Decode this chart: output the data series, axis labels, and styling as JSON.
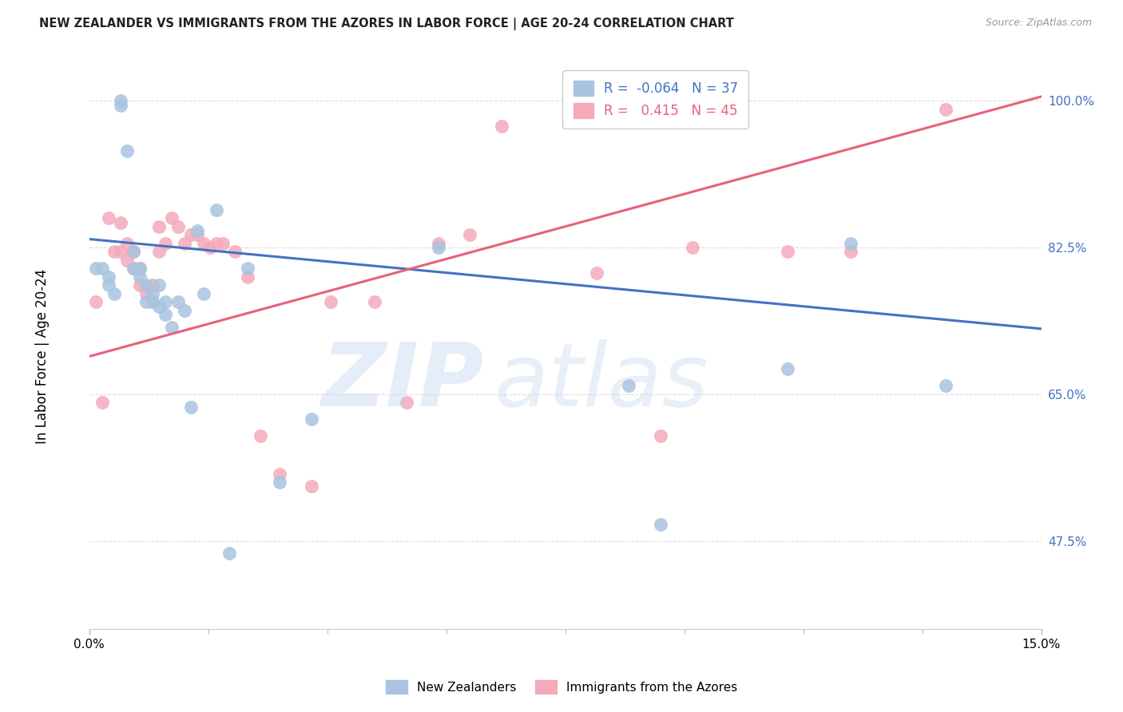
{
  "title": "NEW ZEALANDER VS IMMIGRANTS FROM THE AZORES IN LABOR FORCE | AGE 20-24 CORRELATION CHART",
  "source": "Source: ZipAtlas.com",
  "ylabel": "In Labor Force | Age 20-24",
  "ytick_values": [
    1.0,
    0.825,
    0.65,
    0.475
  ],
  "ytick_labels": [
    "100.0%",
    "82.5%",
    "65.0%",
    "47.5%"
  ],
  "xlim": [
    0.0,
    0.15
  ],
  "ylim": [
    0.37,
    1.055
  ],
  "blue_label": "New Zealanders",
  "pink_label": "Immigrants from the Azores",
  "blue_R": -0.064,
  "blue_N": 37,
  "pink_R": 0.415,
  "pink_N": 45,
  "blue_scatter_color": "#a8c4e0",
  "pink_scatter_color": "#f4aabb",
  "blue_line_color": "#4472c4",
  "pink_line_color": "#e8607a",
  "blue_trend_x": [
    0.0,
    0.15
  ],
  "blue_trend_y": [
    0.835,
    0.728
  ],
  "pink_trend_x": [
    0.0,
    0.15
  ],
  "pink_trend_y": [
    0.695,
    1.005
  ],
  "blue_dots_x": [
    0.001,
    0.002,
    0.003,
    0.003,
    0.004,
    0.005,
    0.005,
    0.006,
    0.007,
    0.007,
    0.008,
    0.008,
    0.009,
    0.009,
    0.01,
    0.01,
    0.011,
    0.011,
    0.012,
    0.012,
    0.013,
    0.014,
    0.015,
    0.016,
    0.017,
    0.018,
    0.02,
    0.022,
    0.025,
    0.03,
    0.035,
    0.055,
    0.085,
    0.09,
    0.11,
    0.12,
    0.135
  ],
  "blue_dots_y": [
    0.8,
    0.8,
    0.79,
    0.78,
    0.77,
    1.0,
    0.995,
    0.94,
    0.82,
    0.8,
    0.8,
    0.79,
    0.78,
    0.76,
    0.77,
    0.76,
    0.78,
    0.755,
    0.76,
    0.745,
    0.73,
    0.76,
    0.75,
    0.635,
    0.845,
    0.77,
    0.87,
    0.46,
    0.8,
    0.545,
    0.62,
    0.825,
    0.66,
    0.495,
    0.68,
    0.83,
    0.66
  ],
  "pink_dots_x": [
    0.001,
    0.002,
    0.003,
    0.004,
    0.005,
    0.005,
    0.006,
    0.006,
    0.007,
    0.007,
    0.008,
    0.008,
    0.009,
    0.01,
    0.01,
    0.011,
    0.011,
    0.012,
    0.013,
    0.014,
    0.015,
    0.016,
    0.017,
    0.018,
    0.019,
    0.02,
    0.021,
    0.023,
    0.025,
    0.027,
    0.03,
    0.035,
    0.038,
    0.045,
    0.05,
    0.055,
    0.06,
    0.065,
    0.08,
    0.09,
    0.095,
    0.1,
    0.11,
    0.12,
    0.135
  ],
  "pink_dots_y": [
    0.76,
    0.64,
    0.86,
    0.82,
    0.855,
    0.82,
    0.83,
    0.81,
    0.82,
    0.8,
    0.8,
    0.78,
    0.77,
    0.78,
    0.76,
    0.85,
    0.82,
    0.83,
    0.86,
    0.85,
    0.83,
    0.84,
    0.84,
    0.83,
    0.825,
    0.83,
    0.83,
    0.82,
    0.79,
    0.6,
    0.555,
    0.54,
    0.76,
    0.76,
    0.64,
    0.83,
    0.84,
    0.97,
    0.795,
    0.6,
    0.825,
    1.0,
    0.82,
    0.82,
    0.99
  ]
}
